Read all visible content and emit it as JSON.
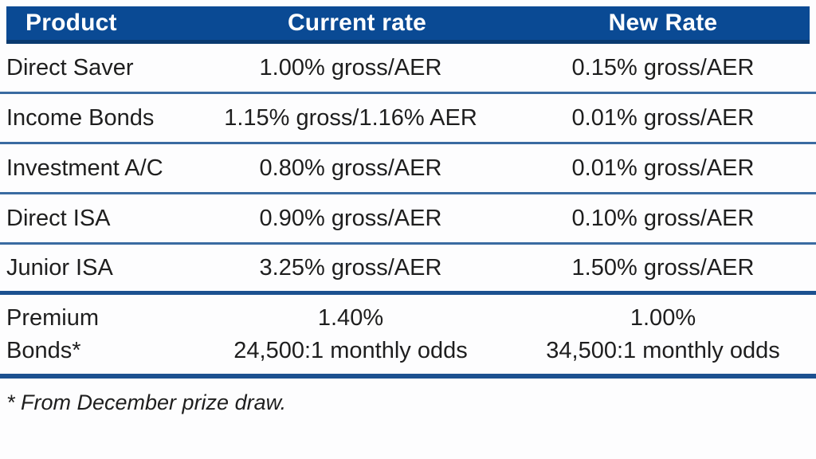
{
  "colors": {
    "header_bg": "#0a4a94",
    "header_border": "#0a3a70",
    "row_rule": "#3a6ba1",
    "thick_rule": "#1c5190",
    "header_text": "#ffffff",
    "body_text": "#1e1e1e",
    "page_bg": "#fdfdfe"
  },
  "table": {
    "columns": [
      {
        "label": "Product"
      },
      {
        "label": "Current rate"
      },
      {
        "label": "New Rate"
      }
    ],
    "rows": [
      {
        "product": "Direct Saver",
        "current": "1.00% gross/AER",
        "new": "0.15% gross/AER"
      },
      {
        "product": "Income Bonds",
        "current": "1.15% gross/1.16% AER",
        "new": "0.01% gross/AER"
      },
      {
        "product": "Investment A/C",
        "current": "0.80% gross/AER",
        "new": "0.01% gross/AER"
      },
      {
        "product": "Direct ISA",
        "current": "0.90% gross/AER",
        "new": "0.10% gross/AER"
      },
      {
        "product": "Junior ISA",
        "current": "3.25% gross/AER",
        "new": "1.50% gross/AER"
      },
      {
        "product_lines": [
          "Premium",
          "Bonds*"
        ],
        "current_lines": [
          "1.40%",
          "24,500:1 monthly odds"
        ],
        "new_lines": [
          "1.00%",
          "34,500:1 monthly odds"
        ]
      }
    ],
    "footnote": "* From December prize draw."
  }
}
